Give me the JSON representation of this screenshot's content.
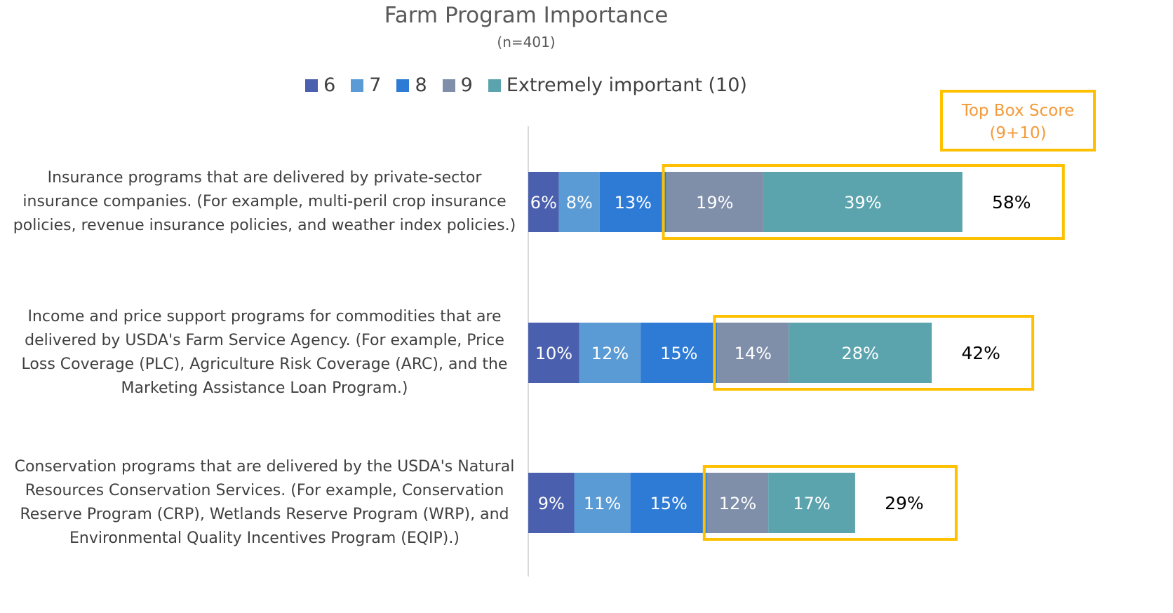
{
  "chart_data": {
    "type": "stacked_bar_horizontal",
    "title": "Farm Program Importance",
    "subtitle": "(n=401)",
    "categories": [
      "Insurance programs that are delivered by private-sector insurance companies. (For example, multi-peril crop insurance policies, revenue insurance policies, and weather index policies.)",
      "Income and price support programs for commodities that are delivered by USDA's Farm Service Agency. (For example, Price Loss Coverage (PLC), Agriculture Risk Coverage (ARC), and the Marketing Assistance Loan Program.)",
      "Conservation programs that are delivered by the USDA's Natural Resources Conservation Services. (For example, Conservation Reserve Program (CRP), Wetlands Reserve Program (WRP), and Environmental Quality Incentives Program (EQIP).)"
    ],
    "series": [
      {
        "name": "6",
        "color": "#4a5fad",
        "values": [
          6,
          10,
          9
        ],
        "value_labels": [
          "6%",
          "10%",
          "9%"
        ]
      },
      {
        "name": "7",
        "color": "#5b9bd5",
        "values": [
          8,
          12,
          11
        ],
        "value_labels": [
          "8%",
          "12%",
          "11%"
        ]
      },
      {
        "name": "8",
        "color": "#2e7bd6",
        "values": [
          13,
          15,
          15
        ],
        "value_labels": [
          "13%",
          "15%",
          "15%"
        ]
      },
      {
        "name": "9",
        "color": "#7f8faa",
        "values": [
          19,
          14,
          12
        ],
        "value_labels": [
          "19%",
          "14%",
          "12%"
        ]
      },
      {
        "name": "Extremely important (10)",
        "color": "#5ba4ad",
        "values": [
          39,
          28,
          17
        ],
        "value_labels": [
          "39%",
          "28%",
          "17%"
        ]
      }
    ],
    "top_box": {
      "title": "Top Box Score (9+10)",
      "values": [
        58,
        42,
        29
      ],
      "value_labels": [
        "58%",
        "42%",
        "29%"
      ]
    },
    "legend": "top"
  }
}
